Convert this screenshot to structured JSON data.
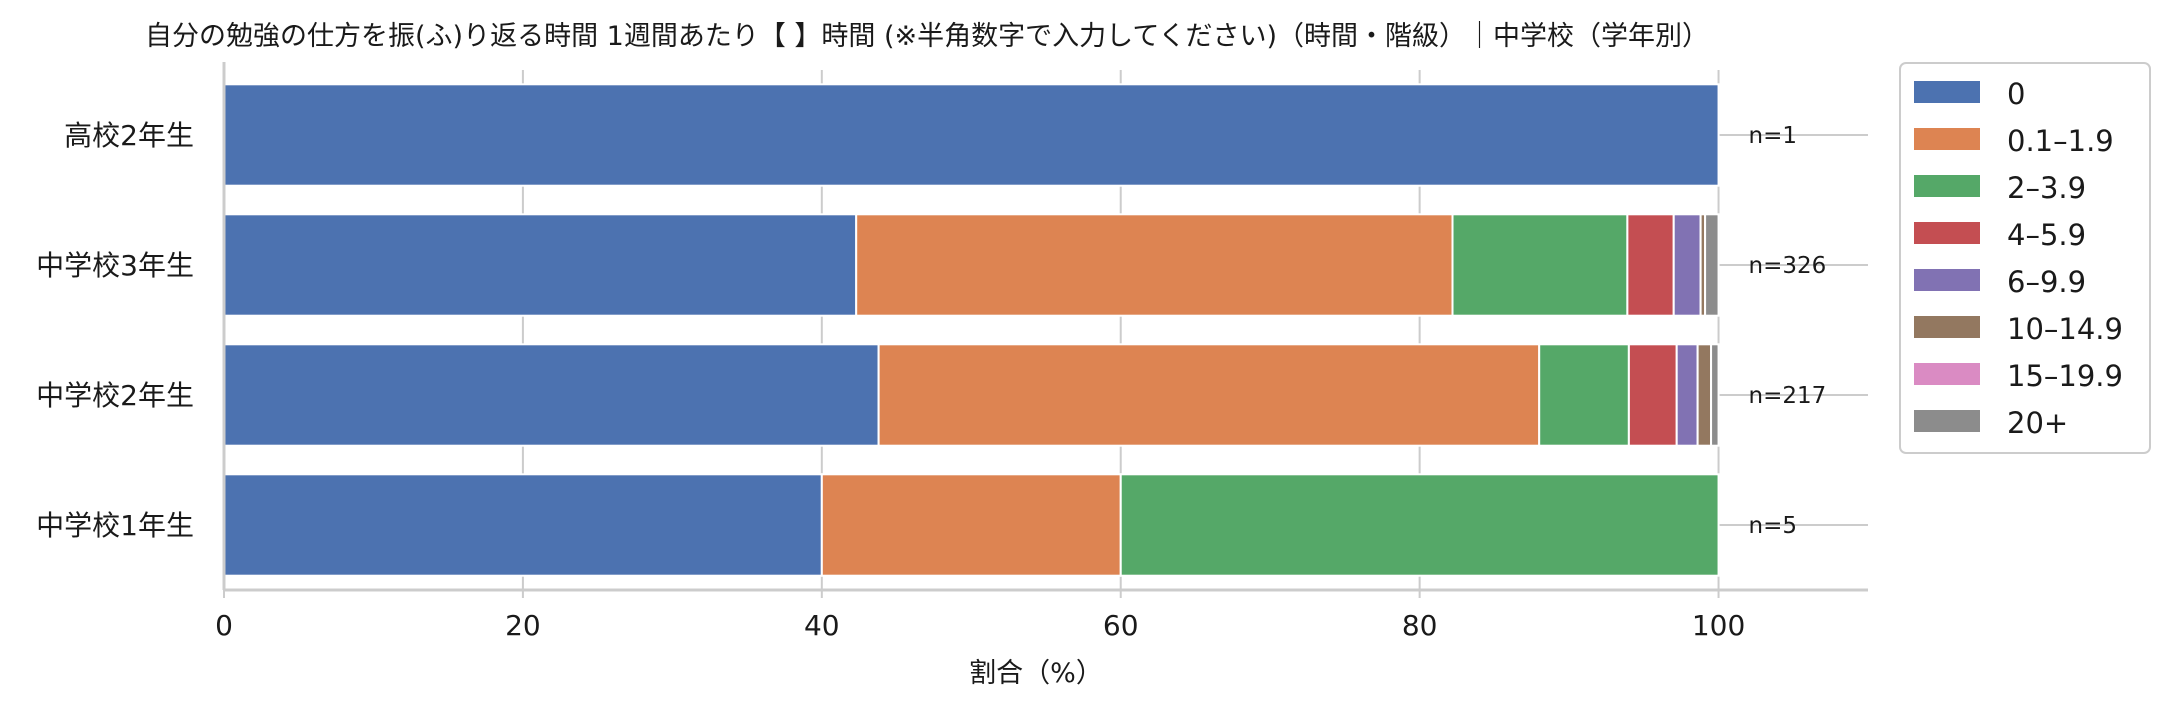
{
  "chart_data": {
    "type": "bar",
    "orientation": "horizontal",
    "stacked": true,
    "title": "自分の勉強の仕方を振(ふ)り返る時間  1週間あたり【   】時間 (※半角数字で入力してください)（時間・階級）｜中学校（学年別）",
    "xlabel": "割合（%）",
    "ylabel": "",
    "xlim": [
      0,
      110
    ],
    "xticks": [
      "0",
      "20",
      "40",
      "60",
      "80",
      "100"
    ],
    "grid": true,
    "legend_position": "outside-right-top",
    "categories": [
      "高校2年生",
      "中学校3年生",
      "中学校2年生",
      "中学校1年生"
    ],
    "n_labels": [
      "n=1",
      "n=326",
      "n=217",
      "n=5"
    ],
    "series": [
      {
        "name": "0",
        "color": "#4c72b0",
        "values": [
          100,
          42.3,
          43.8,
          40
        ]
      },
      {
        "name": "0.1–1.9",
        "color": "#dd8452",
        "values": [
          0,
          39.9,
          44.2,
          20
        ]
      },
      {
        "name": "2–3.9",
        "color": "#55a868",
        "values": [
          0,
          11.7,
          6.0,
          40
        ]
      },
      {
        "name": "4–5.9",
        "color": "#c44e52",
        "values": [
          0,
          3.1,
          3.2,
          0
        ]
      },
      {
        "name": "6–9.9",
        "color": "#8172b3",
        "values": [
          0,
          1.8,
          1.4,
          0
        ]
      },
      {
        "name": "10–14.9",
        "color": "#937860",
        "values": [
          0,
          0.3,
          0.9,
          0
        ]
      },
      {
        "name": "15–19.9",
        "color": "#da8bc3",
        "values": [
          0,
          0,
          0,
          0
        ]
      },
      {
        "name": "20+",
        "color": "#8c8c8c",
        "values": [
          0,
          0.9,
          0.5,
          0
        ]
      }
    ]
  }
}
